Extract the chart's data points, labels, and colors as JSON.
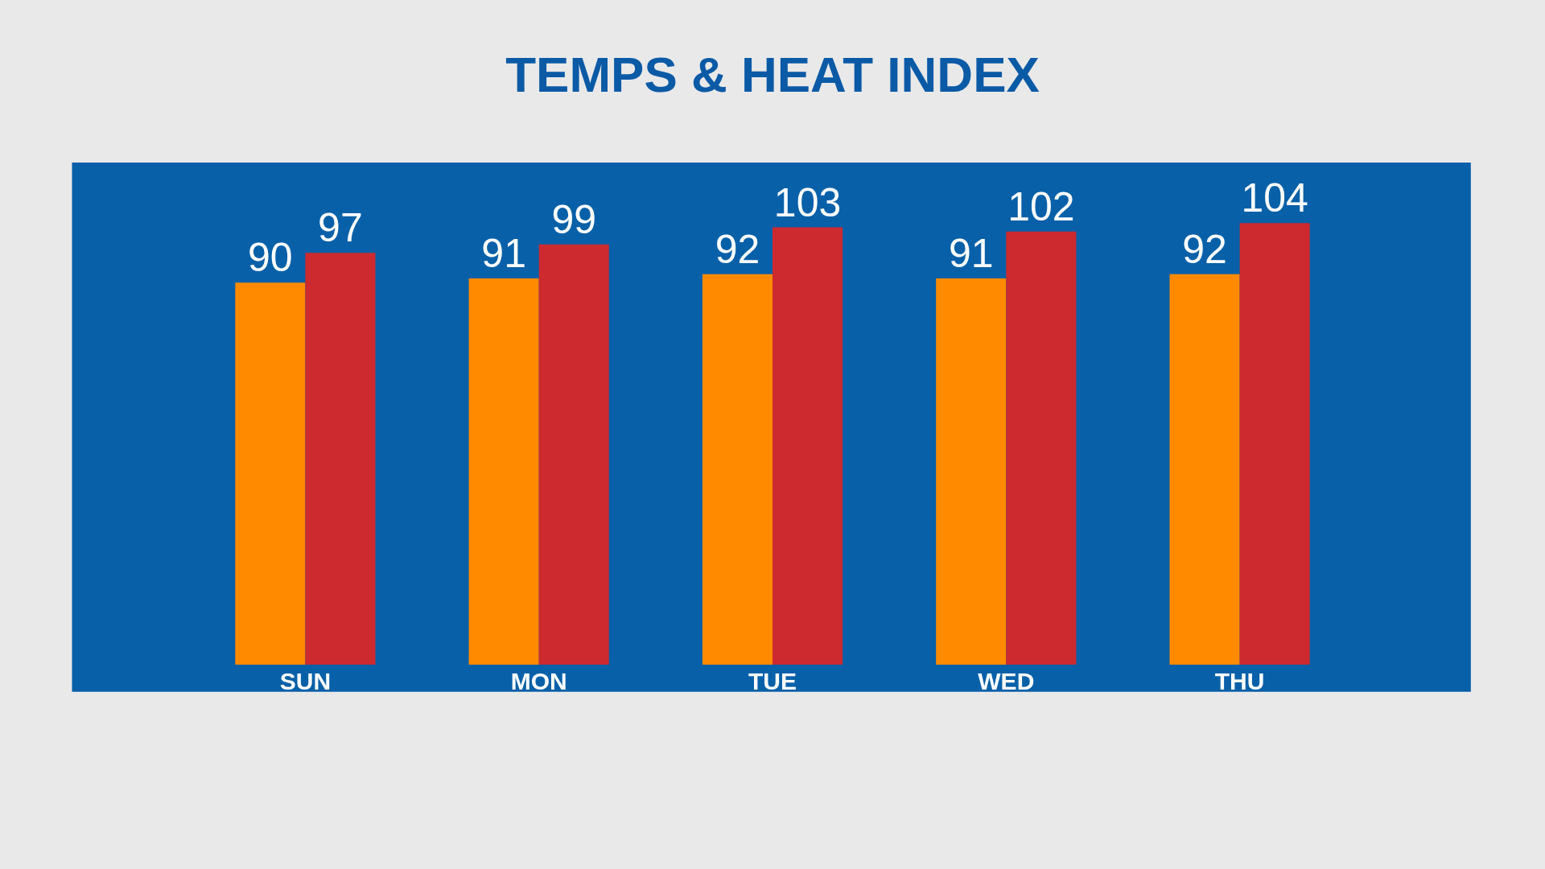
{
  "chart_data": {
    "type": "bar",
    "title": "TEMPS & HEAT INDEX",
    "categories": [
      "SUN",
      "MON",
      "TUE",
      "WED",
      "THU"
    ],
    "series": [
      {
        "color": "#ff8a00",
        "values": [
          90,
          91,
          92,
          91,
          92
        ]
      },
      {
        "color": "#cc2a2f",
        "values": [
          97,
          99,
          103,
          102,
          104
        ]
      }
    ],
    "data_labels": true,
    "legend": false,
    "grid": false
  }
}
